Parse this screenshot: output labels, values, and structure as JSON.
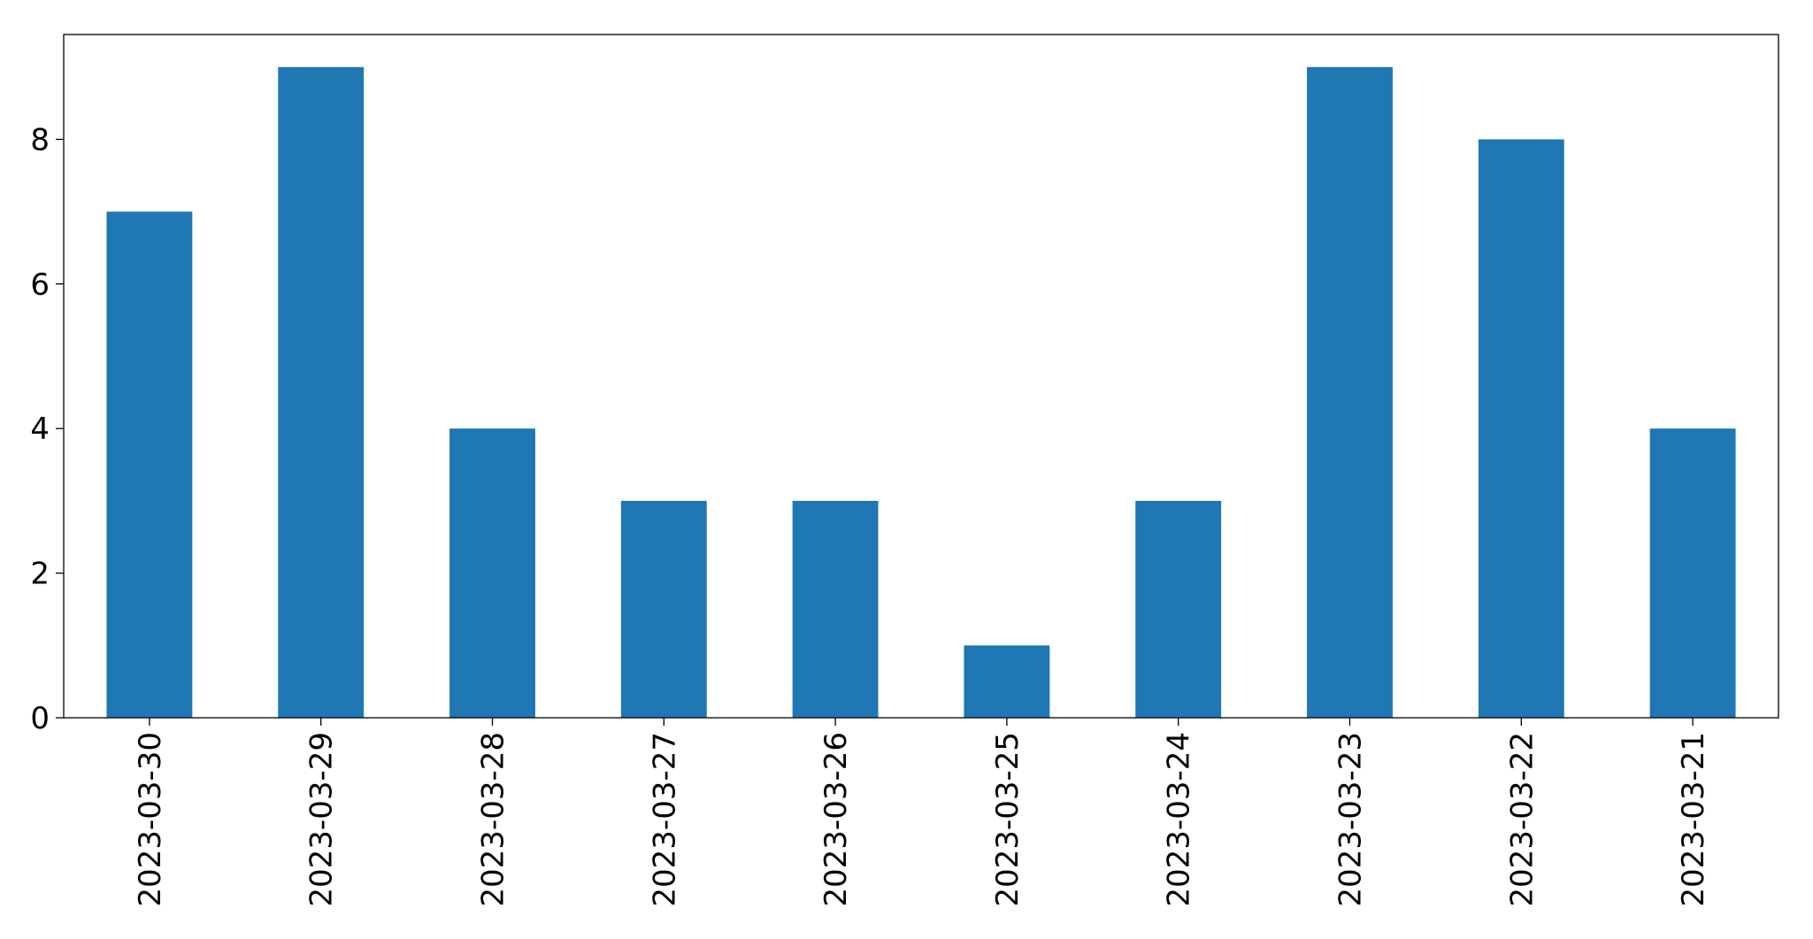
{
  "chart_data": {
    "type": "bar",
    "categories": [
      "2023-03-30",
      "2023-03-29",
      "2023-03-28",
      "2023-03-27",
      "2023-03-26",
      "2023-03-25",
      "2023-03-24",
      "2023-03-23",
      "2023-03-22",
      "2023-03-21"
    ],
    "values": [
      7,
      9,
      4,
      3,
      3,
      1,
      3,
      9,
      8,
      4
    ],
    "color": "#1f77b4",
    "ylim": [
      0,
      9.45
    ],
    "yticks": [
      0,
      2,
      4,
      6,
      8
    ],
    "grid": false
  }
}
